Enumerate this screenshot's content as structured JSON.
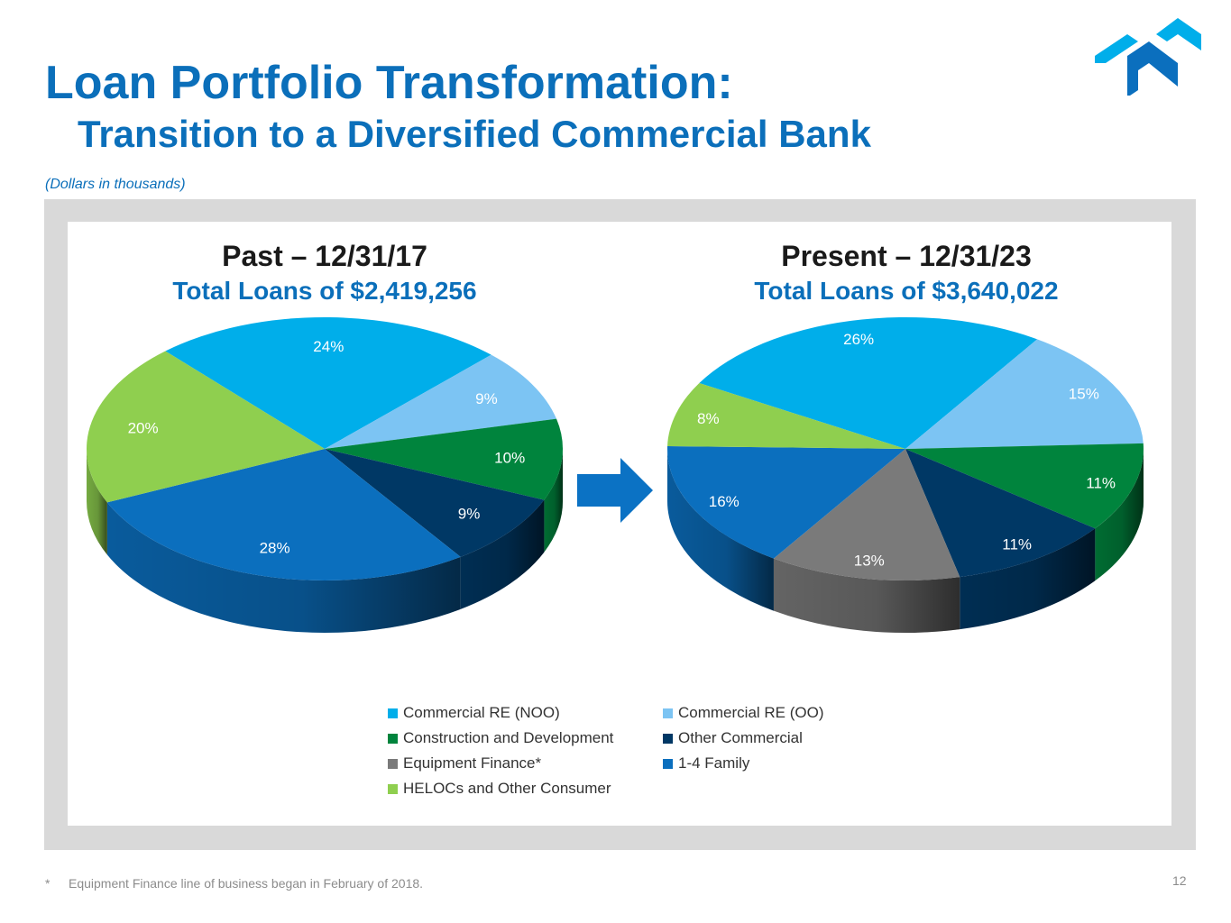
{
  "header": {
    "title": "Loan Portfolio Transformation:",
    "subtitle": "Transition to a Diversified Commercial Bank",
    "units_note": "(Dollars in thousands)"
  },
  "colors": {
    "brand": "#0b6fba",
    "arrow": "#0b72c4"
  },
  "chart_data": [
    {
      "type": "pie",
      "title": "Past – 12/31/17",
      "subtitle": "Total Loans of $2,419,256",
      "slices": [
        {
          "category": "Commercial RE (NOO)",
          "value": 24,
          "label": "24%",
          "color": "#00aeea"
        },
        {
          "category": "Commercial RE (OO)",
          "value": 9,
          "label": "9%",
          "color": "#7cc4f3"
        },
        {
          "category": "Construction and Development",
          "value": 10,
          "label": "10%",
          "color": "#00843d"
        },
        {
          "category": "Other Commercial",
          "value": 9,
          "label": "9%",
          "color": "#003865"
        },
        {
          "category": "1-4 Family",
          "value": 28,
          "label": "28%",
          "color": "#0b6fbe"
        },
        {
          "category": "HELOCs and Other Consumer",
          "value": 20,
          "label": "20%",
          "color": "#8fcf4f"
        }
      ]
    },
    {
      "type": "pie",
      "title": "Present – 12/31/23",
      "subtitle": "Total Loans of $3,640,022",
      "slices": [
        {
          "category": "Commercial RE (NOO)",
          "value": 26,
          "label": "26%",
          "color": "#00aeea"
        },
        {
          "category": "Commercial RE (OO)",
          "value": 15,
          "label": "15%",
          "color": "#7cc4f3"
        },
        {
          "category": "Construction and Development",
          "value": 11,
          "label": "11%",
          "color": "#00843d"
        },
        {
          "category": "Other Commercial",
          "value": 11,
          "label": "11%",
          "color": "#003865"
        },
        {
          "category": "Equipment Finance*",
          "value": 13,
          "label": "13%",
          "color": "#7a7a7a"
        },
        {
          "category": "1-4 Family",
          "value": 16,
          "label": "16%",
          "color": "#0b6fbe"
        },
        {
          "category": "HELOCs and Other Consumer",
          "value": 8,
          "label": "8%",
          "color": "#8fcf4f"
        }
      ]
    }
  ],
  "legend": [
    {
      "label": "Commercial RE (NOO)",
      "color": "#00aeea"
    },
    {
      "label": "Commercial RE (OO)",
      "color": "#7cc4f3"
    },
    {
      "label": "Construction and Development",
      "color": "#00843d"
    },
    {
      "label": "Other Commercial",
      "color": "#003865"
    },
    {
      "label": "Equipment Finance*",
      "color": "#7a7a7a"
    },
    {
      "label": "1-4 Family",
      "color": "#0b6fbe"
    },
    {
      "label": "HELOCs and Other Consumer",
      "color": "#8fcf4f"
    }
  ],
  "footnote": {
    "marker": "*",
    "text": "Equipment Finance line of business began in February of 2018."
  },
  "page_number": "12"
}
